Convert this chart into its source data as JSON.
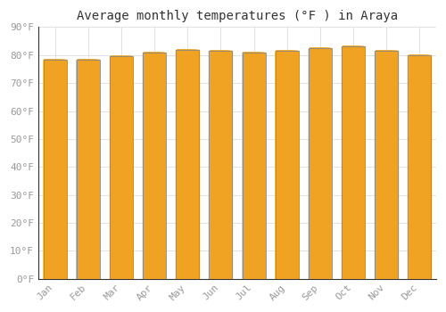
{
  "title": "Average monthly temperatures (°F ) in Araya",
  "months": [
    "Jan",
    "Feb",
    "Mar",
    "Apr",
    "May",
    "Jun",
    "Jul",
    "Aug",
    "Sep",
    "Oct",
    "Nov",
    "Dec"
  ],
  "values": [
    78.5,
    78.5,
    79.5,
    81.0,
    82.0,
    81.5,
    81.0,
    81.5,
    82.5,
    83.0,
    81.5,
    80.0
  ],
  "bar_color_center": "#FFD966",
  "bar_color_edge": "#F0A020",
  "bar_outline_color": "#888888",
  "background_color": "#FFFFFF",
  "grid_color": "#DDDDDD",
  "ylim": [
    0,
    90
  ],
  "yticks": [
    0,
    10,
    20,
    30,
    40,
    50,
    60,
    70,
    80,
    90
  ],
  "ytick_labels": [
    "0°F",
    "10°F",
    "20°F",
    "30°F",
    "40°F",
    "50°F",
    "60°F",
    "70°F",
    "80°F",
    "90°F"
  ],
  "title_fontsize": 10,
  "tick_fontsize": 8,
  "title_color": "#333333",
  "tick_color": "#999999"
}
